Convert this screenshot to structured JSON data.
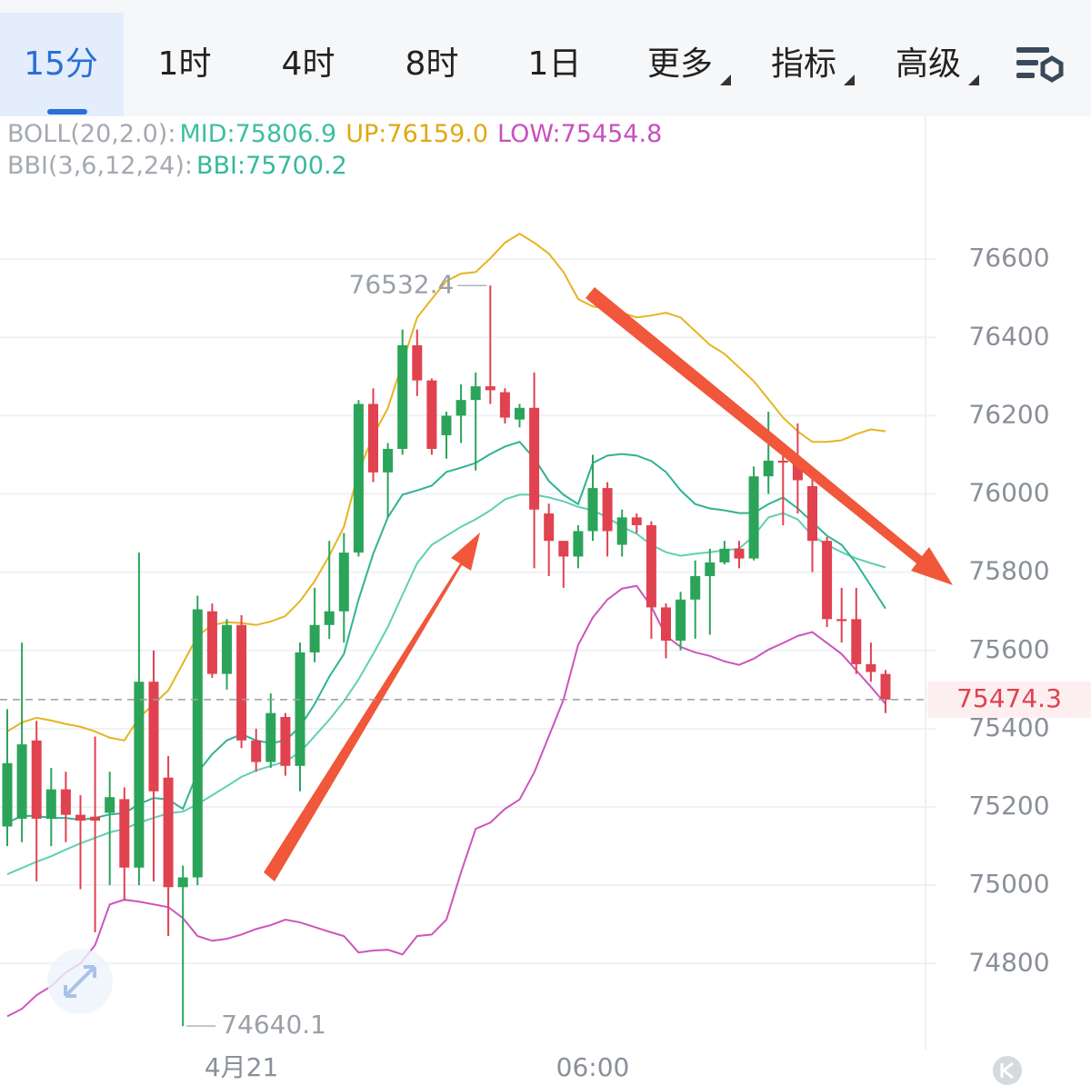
{
  "tabs": [
    "15分",
    "1时",
    "4时",
    "8时",
    "1日",
    "更多",
    "指标",
    "高级"
  ],
  "chart_data": {
    "type": "candlestick",
    "indicators": [
      {
        "label": "BOLL(20,2.0):",
        "items": [
          {
            "text": "MID:75806.9",
            "color": "#3dbf9f"
          },
          {
            "text": "UP:76159.0",
            "color": "#e0a910"
          },
          {
            "text": "LOW:75454.8",
            "color": "#c94fbf"
          }
        ]
      },
      {
        "label": "BBI(3,6,12,24):",
        "items": [
          {
            "text": "BBI:75700.2",
            "color": "#36b99c"
          }
        ]
      }
    ],
    "categories": [
      null,
      null,
      null,
      null,
      null,
      null,
      null,
      null,
      null,
      null,
      null,
      null,
      null,
      null,
      null,
      null,
      "4月21",
      null,
      null,
      null,
      null,
      null,
      null,
      null,
      null,
      null,
      null,
      null,
      null,
      null,
      null,
      null,
      null,
      null,
      null,
      null,
      null,
      null,
      null,
      null,
      "06:00",
      null,
      null,
      null,
      null,
      null,
      null,
      null,
      null,
      null,
      null,
      null,
      null,
      null,
      null,
      null,
      null,
      null,
      null,
      null,
      null
    ],
    "open": [
      75150,
      75170,
      75370,
      75170,
      75245,
      75180,
      75175,
      75185,
      75220,
      75045,
      75520,
      75275,
      74995,
      75020,
      75700,
      75540,
      75665,
      75370,
      75315,
      75430,
      75305,
      75595,
      75665,
      75700,
      75850,
      76230,
      76055,
      76115,
      76380,
      76290,
      76150,
      76200,
      76240,
      76275,
      76260,
      76190,
      76220,
      75950,
      75880,
      75840,
      75905,
      76015,
      75870,
      75940,
      75920,
      75710,
      75625,
      75730,
      75790,
      75825,
      75860,
      75835,
      76045,
      76085,
      76080,
      76020,
      75880,
      75680,
      75680,
      75565,
      75540
    ],
    "high": [
      75450,
      75620,
      75420,
      75300,
      75290,
      75230,
      75380,
      75290,
      75250,
      75850,
      75600,
      75330,
      75050,
      75740,
      75720,
      75680,
      75690,
      75400,
      75490,
      75440,
      75620,
      75760,
      75880,
      75900,
      76240,
      76270,
      76130,
      76420,
      76420,
      76295,
      76210,
      76280,
      76310,
      76532.4,
      76270,
      76230,
      76310,
      75975,
      75880,
      75920,
      76100,
      76030,
      75960,
      75950,
      75930,
      75720,
      75750,
      75830,
      75860,
      75880,
      75880,
      76070,
      76210,
      76120,
      76180,
      76050,
      75890,
      75760,
      75760,
      75620,
      75550
    ],
    "low": [
      75100,
      75110,
      75010,
      75100,
      75110,
      74990,
      74880,
      75000,
      74960,
      75000,
      75010,
      74870,
      74640.1,
      75000,
      75530,
      75500,
      75350,
      75290,
      75300,
      75280,
      75240,
      75570,
      75630,
      75620,
      75840,
      76030,
      75940,
      76100,
      76250,
      76100,
      76090,
      76130,
      76060,
      76230,
      76180,
      76170,
      75810,
      75790,
      75760,
      75810,
      75880,
      75840,
      75840,
      75900,
      75630,
      75580,
      75600,
      75630,
      75640,
      75820,
      75810,
      75830,
      76000,
      75920,
      75950,
      75800,
      75660,
      75620,
      75540,
      75520,
      75440
    ],
    "close": [
      75312,
      75360,
      75170,
      75245,
      75180,
      75165,
      75165,
      75225,
      75045,
      75520,
      75240,
      74995,
      75020,
      75705,
      75540,
      75665,
      75370,
      75315,
      75440,
      75305,
      75595,
      75665,
      75700,
      75850,
      76230,
      76055,
      76115,
      76380,
      76290,
      76115,
      76200,
      76240,
      76275,
      76265,
      76195,
      76220,
      75960,
      75880,
      75840,
      75905,
      76015,
      75905,
      75940,
      75920,
      75710,
      75625,
      75730,
      75790,
      75825,
      75860,
      75835,
      76045,
      76085,
      76080,
      76035,
      75880,
      75680,
      75675,
      75565,
      75545,
      75474.3
    ],
    "up_color": "#2ba45a",
    "down_color": "#e0424f",
    "lines": [
      {
        "color": "#e6b422",
        "values": [
          75393,
          75416,
          75428,
          75421,
          75412,
          75405,
          75393,
          75377,
          75370,
          75428,
          75463,
          75498,
          75567,
          75637,
          75665,
          75672,
          75670,
          75665,
          75674,
          75688,
          75726,
          75777,
          75842,
          75916,
          76056,
          76149,
          76219,
          76335,
          76451,
          76498,
          76544,
          76563,
          76567,
          76602,
          76642,
          76665,
          76642,
          76614,
          76567,
          76498,
          76479,
          76474,
          76463,
          76451,
          76456,
          76463,
          76451,
          76416,
          76381,
          76358,
          76323,
          76288,
          76242,
          76195,
          76160,
          76133,
          76133,
          76137,
          76153,
          76165,
          76160
        ]
      },
      {
        "color": "#5fd0b2",
        "values": [
          75028,
          75044,
          75060,
          75074,
          75091,
          75107,
          75121,
          75135,
          75144,
          75160,
          75172,
          75184,
          75188,
          75207,
          75230,
          75253,
          75277,
          75293,
          75305,
          75316,
          75340,
          75381,
          75423,
          75470,
          75526,
          75591,
          75660,
          75742,
          75823,
          75870,
          75893,
          75916,
          75935,
          75958,
          75986,
          75998,
          75998,
          75991,
          75981,
          75967,
          75958,
          75940,
          75916,
          75898,
          75870,
          75851,
          75842,
          75847,
          75851,
          75856,
          75860,
          75893,
          75940,
          75951,
          75935,
          75893,
          75870,
          75851,
          75835,
          75823,
          75812
        ]
      },
      {
        "color": "#2fb394",
        "values": [
          75160,
          75177,
          75177,
          75172,
          75172,
          75167,
          75172,
          75181,
          75184,
          75207,
          75223,
          75219,
          75195,
          75288,
          75335,
          75370,
          75386,
          75370,
          75363,
          75370,
          75405,
          75463,
          75533,
          75591,
          75730,
          75847,
          75940,
          75998,
          76009,
          76021,
          76056,
          76067,
          76079,
          76102,
          76121,
          76133,
          76091,
          76033,
          75998,
          75974,
          76079,
          76098,
          76102,
          76098,
          76084,
          76056,
          76009,
          75974,
          75963,
          75958,
          75951,
          75951,
          75974,
          75991,
          75963,
          75928,
          75893,
          75870,
          75823,
          75765,
          75707
        ]
      },
      {
        "color": "#cc55bd",
        "values": [
          74665,
          74684,
          74719,
          74742,
          74777,
          74800,
          74847,
          74951,
          74963,
          74958,
          74951,
          74944,
          74916,
          74870,
          74858,
          74863,
          74874,
          74888,
          74898,
          74912,
          74905,
          74893,
          74881,
          74870,
          74828,
          74833,
          74835,
          74823,
          74870,
          74874,
          74912,
          75033,
          75144,
          75160,
          75195,
          75219,
          75288,
          75381,
          75474,
          75614,
          75684,
          75730,
          75758,
          75765,
          75712,
          75637,
          75609,
          75595,
          75586,
          75572,
          75563,
          75579,
          75602,
          75619,
          75637,
          75647,
          75619,
          75591,
          75549,
          75507,
          75463
        ]
      }
    ],
    "ylim": [
      74580,
      76965
    ],
    "yticks": [
      74800,
      75000,
      75200,
      75400,
      75600,
      75800,
      76000,
      76200,
      76400,
      76600
    ],
    "grid": true
  }
}
